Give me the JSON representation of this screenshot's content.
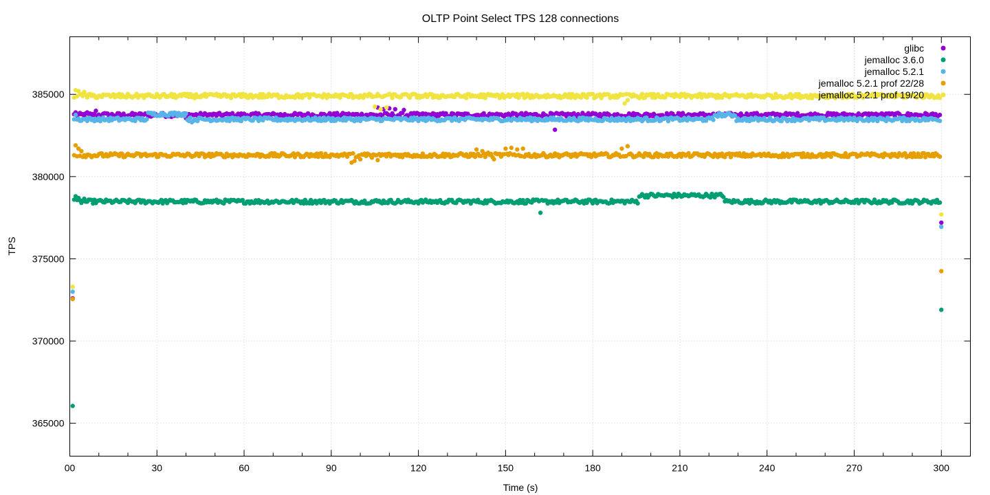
{
  "chart_data": {
    "type": "scatter",
    "title": "OLTP Point Select TPS 128 connections",
    "xlabel": "Time (s)",
    "ylabel": "TPS",
    "xlim": [
      0,
      310
    ],
    "ylim": [
      363000,
      388500
    ],
    "x_ticks": [
      0,
      30,
      60,
      90,
      120,
      150,
      180,
      210,
      240,
      270,
      300
    ],
    "x_tick_labels": [
      "00",
      "30",
      "60",
      "90",
      "120",
      "150",
      "180",
      "210",
      "240",
      "270",
      "300"
    ],
    "y_ticks": [
      365000,
      370000,
      375000,
      380000,
      385000
    ],
    "grid": true,
    "legend_position": "top-right",
    "series": [
      {
        "name": "glibc",
        "color": "#9400d3",
        "base": 383750,
        "jitter": 120,
        "points": [
          [
            1,
            372600
          ],
          [
            2,
            383900
          ],
          [
            6,
            383900
          ],
          [
            9,
            384000
          ],
          [
            12,
            383850
          ],
          [
            39,
            383750
          ],
          [
            40,
            383550
          ],
          [
            106,
            384200
          ],
          [
            108,
            384100
          ],
          [
            110,
            384150
          ],
          [
            112,
            384100
          ],
          [
            115,
            384050
          ],
          [
            167,
            382850
          ],
          [
            300,
            377200
          ]
        ]
      },
      {
        "name": "jemalloc 3.6.0",
        "color": "#009e73",
        "base": 378480,
        "jitter": 120,
        "points": [
          [
            1,
            366050
          ],
          [
            2,
            378800
          ],
          [
            3,
            378700
          ],
          [
            5,
            378650
          ],
          [
            162,
            377800
          ],
          [
            300,
            371900
          ]
        ],
        "segments": [
          {
            "from": 196,
            "to": 225,
            "base": 378850
          }
        ]
      },
      {
        "name": "jemalloc 5.2.1",
        "color": "#56b4e9",
        "base": 383480,
        "jitter": 110,
        "points": [
          [
            1,
            373000
          ],
          [
            2,
            383750
          ],
          [
            42,
            383300
          ],
          [
            300,
            376950
          ]
        ],
        "segments": [
          {
            "from": 27,
            "to": 40,
            "base": 383800
          },
          {
            "from": 222,
            "to": 229,
            "base": 383750
          }
        ]
      },
      {
        "name": "jemalloc 5.2.1 prof 22/28",
        "color": "#e69f00",
        "base": 381300,
        "jitter": 120,
        "points": [
          [
            1,
            372550
          ],
          [
            2,
            381900
          ],
          [
            3,
            381700
          ],
          [
            4,
            381550
          ],
          [
            97,
            380850
          ],
          [
            98,
            380950
          ],
          [
            100,
            381050
          ],
          [
            102,
            381250
          ],
          [
            104,
            381150
          ],
          [
            106,
            381000
          ],
          [
            140,
            381650
          ],
          [
            142,
            381550
          ],
          [
            144,
            381450
          ],
          [
            146,
            381050
          ],
          [
            150,
            381700
          ],
          [
            152,
            381750
          ],
          [
            154,
            381650
          ],
          [
            156,
            381700
          ],
          [
            190,
            381700
          ],
          [
            192,
            381850
          ],
          [
            300,
            374250
          ]
        ]
      },
      {
        "name": "jemalloc 5.2.1 prof 19/20",
        "color": "#f0e442",
        "base": 384900,
        "jitter": 130,
        "points": [
          [
            1,
            373300
          ],
          [
            2,
            385250
          ],
          [
            3,
            385200
          ],
          [
            5,
            385150
          ],
          [
            105,
            384250
          ],
          [
            107,
            384100
          ],
          [
            109,
            384200
          ],
          [
            191,
            384450
          ],
          [
            192,
            384650
          ],
          [
            300,
            377700
          ]
        ]
      }
    ]
  }
}
